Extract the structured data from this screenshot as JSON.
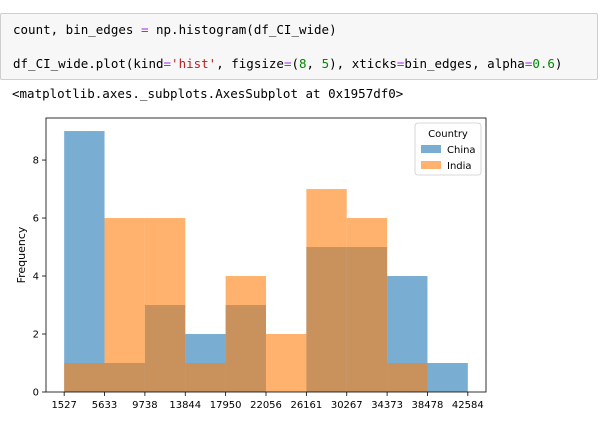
{
  "code": {
    "line1": "count, bin_edges = np.histogram(df_CI_wide)",
    "line2": "df_CI_wide.plot(kind='hist', figsize=(8, 5), xticks=bin_edges, alpha=0.6)"
  },
  "output": {
    "text": "<matplotlib.axes._subplots.AxesSubplot at 0x1957df0>"
  },
  "colors": {
    "china": "#1f77b4",
    "india": "#ff7f0e"
  },
  "chart_data": {
    "type": "bar",
    "title": "",
    "xlabel": "",
    "ylabel": "Frequency",
    "bin_edges": [
      1527,
      5633,
      9738,
      13844,
      17950,
      22056,
      26161,
      30267,
      34373,
      38478,
      42584
    ],
    "xticks": [
      "1527",
      "5633",
      "9738",
      "13844",
      "17950",
      "22056",
      "26161",
      "30267",
      "34373",
      "38478",
      "42584"
    ],
    "yticks": [
      0,
      2,
      4,
      6,
      8
    ],
    "ylim": [
      0,
      9.45
    ],
    "alpha": 0.6,
    "legend": {
      "title": "Country",
      "placement": "top-right"
    },
    "series": [
      {
        "name": "China",
        "values": [
          9,
          1,
          3,
          2,
          3,
          0,
          5,
          5,
          4,
          1
        ]
      },
      {
        "name": "India",
        "values": [
          1,
          6,
          6,
          1,
          4,
          2,
          7,
          6,
          1,
          0
        ]
      }
    ]
  }
}
